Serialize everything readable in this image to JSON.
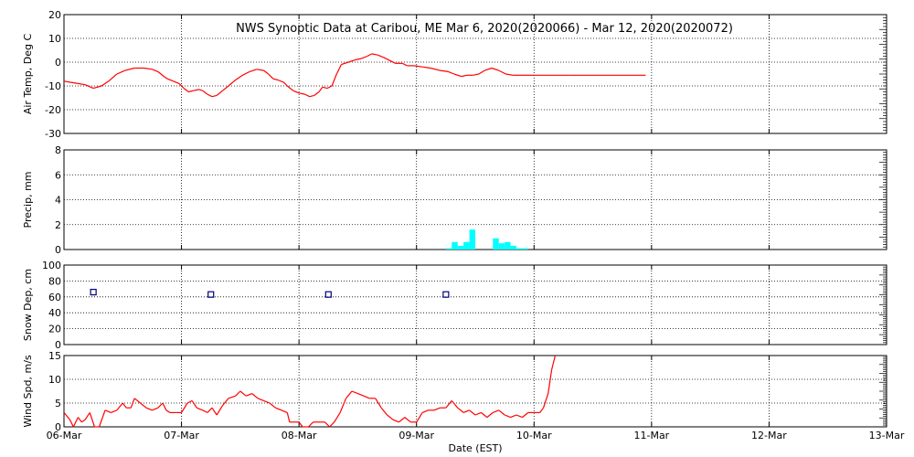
{
  "chart_data": {
    "title": "NWS Synoptic Data at Caribou, ME   Mar  6, 2020(2020066) - Mar 12, 2020(2020072)",
    "xlabel": "Date (EST)",
    "x_ticks": [
      "06-Mar",
      "07-Mar",
      "08-Mar",
      "09-Mar",
      "10-Mar",
      "11-Mar",
      "12-Mar",
      "13-Mar"
    ],
    "xlim_days": [
      0,
      7
    ],
    "grid": true,
    "panels": [
      {
        "id": "air-temp",
        "type": "line",
        "ylabel": "Air Temp, Deg C",
        "ylim": [
          -30,
          20
        ],
        "yticks": [
          20,
          10,
          0,
          -10,
          -20,
          -30
        ],
        "color": "#ff0000",
        "points": [
          [
            0.0,
            -8
          ],
          [
            0.06,
            -8.5
          ],
          [
            0.12,
            -9
          ],
          [
            0.18,
            -9.5
          ],
          [
            0.25,
            -11
          ],
          [
            0.32,
            -10
          ],
          [
            0.38,
            -8
          ],
          [
            0.45,
            -5
          ],
          [
            0.52,
            -3.5
          ],
          [
            0.6,
            -2.5
          ],
          [
            0.68,
            -2.5
          ],
          [
            0.75,
            -3
          ],
          [
            0.8,
            -4
          ],
          [
            0.85,
            -6
          ],
          [
            0.88,
            -7
          ],
          [
            0.93,
            -8
          ],
          [
            0.98,
            -9
          ],
          [
            1.02,
            -11
          ],
          [
            1.06,
            -12.5
          ],
          [
            1.1,
            -12
          ],
          [
            1.15,
            -11.5
          ],
          [
            1.18,
            -12
          ],
          [
            1.22,
            -13.5
          ],
          [
            1.26,
            -14.5
          ],
          [
            1.3,
            -14
          ],
          [
            1.35,
            -12
          ],
          [
            1.4,
            -10
          ],
          [
            1.46,
            -7.5
          ],
          [
            1.52,
            -5.5
          ],
          [
            1.58,
            -4
          ],
          [
            1.64,
            -3
          ],
          [
            1.7,
            -3.5
          ],
          [
            1.74,
            -5
          ],
          [
            1.78,
            -7
          ],
          [
            1.82,
            -7.5
          ],
          [
            1.87,
            -8.5
          ],
          [
            1.9,
            -10
          ],
          [
            1.95,
            -12
          ],
          [
            2.0,
            -13
          ],
          [
            2.05,
            -13.5
          ],
          [
            2.09,
            -14.5
          ],
          [
            2.13,
            -14
          ],
          [
            2.17,
            -12.5
          ],
          [
            2.2,
            -10.5
          ],
          [
            2.24,
            -11
          ],
          [
            2.28,
            -10
          ],
          [
            2.32,
            -5
          ],
          [
            2.36,
            -1
          ],
          [
            2.42,
            0
          ],
          [
            2.48,
            1
          ],
          [
            2.53,
            1.5
          ],
          [
            2.58,
            2.5
          ],
          [
            2.62,
            3.5
          ],
          [
            2.67,
            3
          ],
          [
            2.72,
            2
          ],
          [
            2.78,
            0.5
          ],
          [
            2.82,
            -0.5
          ],
          [
            2.88,
            -0.5
          ],
          [
            2.92,
            -1.5
          ],
          [
            2.98,
            -1.5
          ],
          [
            3.05,
            -2
          ],
          [
            3.12,
            -2.5
          ],
          [
            3.2,
            -3.5
          ],
          [
            3.27,
            -4
          ],
          [
            3.32,
            -5
          ],
          [
            3.38,
            -6
          ],
          [
            3.43,
            -5.5
          ],
          [
            3.48,
            -5.5
          ],
          [
            3.53,
            -5
          ],
          [
            3.58,
            -3.5
          ],
          [
            3.64,
            -2.5
          ],
          [
            3.7,
            -3.5
          ],
          [
            3.76,
            -5
          ],
          [
            3.82,
            -5.5
          ],
          [
            3.9,
            -5.5
          ],
          [
            4.0,
            -5.5
          ],
          [
            4.3,
            -5.5
          ],
          [
            4.95,
            -5.5
          ]
        ]
      },
      {
        "id": "precip",
        "type": "bar",
        "ylabel": "Precip, mm",
        "ylim": [
          0,
          8
        ],
        "yticks": [
          8,
          6,
          4,
          2,
          0
        ],
        "color": "#00ffff",
        "bar_width_days": 0.05,
        "bars": [
          [
            3.25,
            0.1
          ],
          [
            3.3,
            0.6
          ],
          [
            3.35,
            0.3
          ],
          [
            3.4,
            0.6
          ],
          [
            3.45,
            1.6
          ],
          [
            3.65,
            0.9
          ],
          [
            3.7,
            0.5
          ],
          [
            3.75,
            0.6
          ],
          [
            3.8,
            0.3
          ],
          [
            3.85,
            0.1
          ],
          [
            3.9,
            0.1
          ]
        ]
      },
      {
        "id": "snow-depth",
        "type": "scatter",
        "ylabel": "Snow Dep, cm",
        "ylim": [
          0,
          100
        ],
        "yticks": [
          100,
          80,
          60,
          40,
          20,
          0
        ],
        "color": "#00007f",
        "points": [
          [
            0.25,
            66
          ],
          [
            1.25,
            63
          ],
          [
            2.25,
            63
          ],
          [
            3.25,
            63
          ]
        ]
      },
      {
        "id": "wind-speed",
        "type": "line",
        "ylabel": "Wind Spd, m/s",
        "ylim": [
          0,
          15
        ],
        "yticks": [
          15,
          10,
          5,
          0
        ],
        "color": "#ff0000",
        "points": [
          [
            0.0,
            3
          ],
          [
            0.05,
            1.5
          ],
          [
            0.08,
            0
          ],
          [
            0.12,
            2
          ],
          [
            0.15,
            1
          ],
          [
            0.18,
            1.5
          ],
          [
            0.22,
            3
          ],
          [
            0.26,
            0
          ],
          [
            0.3,
            0
          ],
          [
            0.35,
            3.5
          ],
          [
            0.4,
            3
          ],
          [
            0.45,
            3.5
          ],
          [
            0.5,
            5
          ],
          [
            0.53,
            4
          ],
          [
            0.57,
            4
          ],
          [
            0.6,
            6
          ],
          [
            0.65,
            5
          ],
          [
            0.7,
            4
          ],
          [
            0.75,
            3.5
          ],
          [
            0.8,
            4
          ],
          [
            0.84,
            5
          ],
          [
            0.87,
            3.5
          ],
          [
            0.9,
            3
          ],
          [
            0.95,
            3
          ],
          [
            1.0,
            3
          ],
          [
            1.05,
            5
          ],
          [
            1.09,
            5.5
          ],
          [
            1.13,
            4
          ],
          [
            1.18,
            3.5
          ],
          [
            1.22,
            3
          ],
          [
            1.26,
            4
          ],
          [
            1.3,
            2.5
          ],
          [
            1.35,
            4.5
          ],
          [
            1.4,
            6
          ],
          [
            1.46,
            6.5
          ],
          [
            1.5,
            7.5
          ],
          [
            1.55,
            6.5
          ],
          [
            1.6,
            7
          ],
          [
            1.65,
            6
          ],
          [
            1.7,
            5.5
          ],
          [
            1.75,
            5
          ],
          [
            1.8,
            4
          ],
          [
            1.85,
            3.5
          ],
          [
            1.9,
            3
          ],
          [
            1.92,
            1
          ],
          [
            1.96,
            1
          ],
          [
            2.0,
            1
          ],
          [
            2.03,
            0
          ],
          [
            2.08,
            0
          ],
          [
            2.12,
            1
          ],
          [
            2.18,
            1
          ],
          [
            2.22,
            1
          ],
          [
            2.26,
            0
          ],
          [
            2.3,
            1
          ],
          [
            2.35,
            3
          ],
          [
            2.4,
            6
          ],
          [
            2.45,
            7.5
          ],
          [
            2.5,
            7
          ],
          [
            2.55,
            6.5
          ],
          [
            2.6,
            6
          ],
          [
            2.65,
            6
          ],
          [
            2.7,
            4
          ],
          [
            2.75,
            2.5
          ],
          [
            2.8,
            1.5
          ],
          [
            2.85,
            1
          ],
          [
            2.9,
            2
          ],
          [
            2.95,
            1
          ],
          [
            3.0,
            1
          ],
          [
            3.05,
            3
          ],
          [
            3.1,
            3.5
          ],
          [
            3.15,
            3.5
          ],
          [
            3.2,
            4
          ],
          [
            3.25,
            4
          ],
          [
            3.3,
            5.5
          ],
          [
            3.35,
            4
          ],
          [
            3.4,
            3
          ],
          [
            3.45,
            3.5
          ],
          [
            3.5,
            2.5
          ],
          [
            3.55,
            3
          ],
          [
            3.6,
            2
          ],
          [
            3.65,
            3
          ],
          [
            3.7,
            3.5
          ],
          [
            3.75,
            2.5
          ],
          [
            3.8,
            2
          ],
          [
            3.85,
            2.5
          ],
          [
            3.9,
            2
          ],
          [
            3.95,
            3
          ],
          [
            4.0,
            3
          ],
          [
            4.05,
            3
          ],
          [
            4.08,
            4
          ],
          [
            4.12,
            7
          ],
          [
            4.15,
            12
          ],
          [
            4.18,
            15
          ]
        ]
      }
    ]
  }
}
